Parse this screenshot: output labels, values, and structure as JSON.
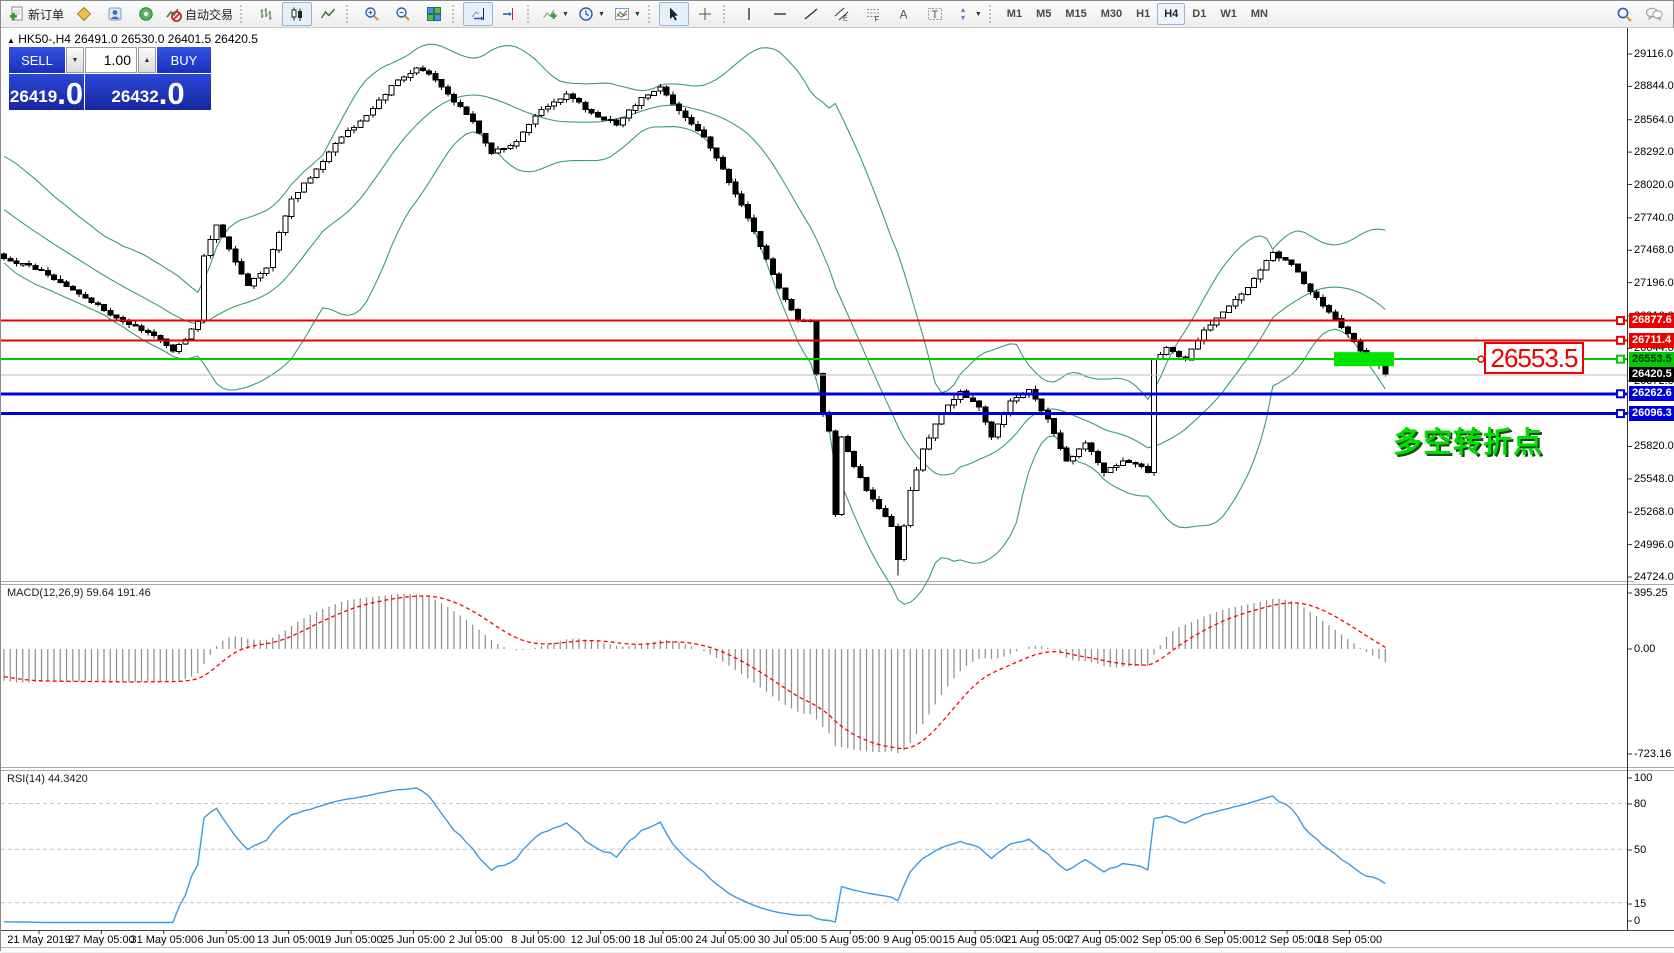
{
  "toolbar": {
    "new_order_label": "新订单",
    "autotrading_label": "自动交易",
    "timeframes": [
      "M1",
      "M5",
      "M15",
      "M30",
      "H1",
      "H4",
      "D1",
      "W1",
      "MN"
    ],
    "active_timeframe": "H4"
  },
  "quote_header": {
    "symbol": "HK50-,H4",
    "open": "26491.0",
    "high": "26530.0",
    "low": "26401.5",
    "close": "26420.5"
  },
  "order_panel": {
    "sell_label": "SELL",
    "buy_label": "BUY",
    "volume": "1.00",
    "sell_price": "26419",
    "sell_price_fraction": ".0",
    "buy_price": "26432",
    "buy_price_fraction": ".0"
  },
  "price_axis_ticks": [
    "29116.0",
    "28844.0",
    "28564.0",
    "28292.0",
    "28020.0",
    "27740.0",
    "27468.0",
    "27196.0",
    "26916.0",
    "26644.0",
    "26372.0",
    "26100.0",
    "25820.0",
    "25548.0",
    "25268.0",
    "24996.0",
    "24724.0"
  ],
  "hlines": [
    {
      "price": 26877.6,
      "label": "26877.6",
      "color": "#ee0000",
      "text_color": "#ffffff",
      "width": 2
    },
    {
      "price": 26711.4,
      "label": "26711.4",
      "color": "#ee0000",
      "text_color": "#ffffff",
      "width": 2
    },
    {
      "price": 26553.5,
      "label": "26553.5",
      "color": "#00cc00",
      "text_color": "#003308",
      "width": 2
    },
    {
      "price": 26262.6,
      "label": "26262.6",
      "color": "#0000dd",
      "text_color": "#ffffff",
      "width": 3
    },
    {
      "price": 26096.3,
      "label": "26096.3",
      "color": "#0000dd",
      "text_color": "#ffffff",
      "width": 3
    }
  ],
  "current_price": {
    "price": 26420.5,
    "label": "26420.5",
    "line_color": "#bcbcbc",
    "tag_bg": "#000000",
    "tag_text": "#ffffff"
  },
  "annotations": {
    "price_callout": "26553.5",
    "turning_point_text": "多空转折点",
    "highlight_color": "#00e400"
  },
  "macd_pane": {
    "label": "MACD(12,26,9)",
    "value_main": "59.64",
    "value_signal": "191.46",
    "axis": [
      "395.25",
      "0.00",
      "-723.16"
    ],
    "histogram_color": "#8c8c8c",
    "signal_color": "#ff0000"
  },
  "rsi_pane": {
    "label": "RSI(14)",
    "value": "44.3420",
    "axis": [
      "100",
      "80",
      "50",
      "15",
      "0"
    ],
    "levels": [
      80,
      50,
      15
    ],
    "line_color": "#3e9ade"
  },
  "date_axis": [
    "21 May 2019",
    "27 May 05:00",
    "31 May 05:00",
    "6 Jun 05:00",
    "13 Jun 05:00",
    "19 Jun 05:00",
    "25 Jun 05:00",
    "2 Jul 05:00",
    "8 Jul 05:00",
    "12 Jul 05:00",
    "18 Jul 05:00",
    "24 Jul 05:00",
    "30 Jul 05:00",
    "5 Aug 05:00",
    "9 Aug 05:00",
    "15 Aug 05:00",
    "21 Aug 05:00",
    "27 Aug 05:00",
    "2 Sep 05:00",
    "6 Sep 05:00",
    "12 Sep 05:00",
    "18 Sep 05:00"
  ],
  "chart_data": {
    "type": "candlestick",
    "symbol": "HK50-",
    "timeframe": "H4",
    "price_axis_range": [
      24724.0,
      29116.0
    ],
    "bars_visible": 222,
    "up_color": "#ffffff",
    "down_color": "#000000",
    "bollinger": {
      "period": 20,
      "deviation": 2,
      "color": "#3a9e6d"
    },
    "prehistory_trend": [
      28450,
      27480
    ],
    "close_keypoints": [
      [
        0,
        27400
      ],
      [
        6,
        27300
      ],
      [
        12,
        27100
      ],
      [
        18,
        26900
      ],
      [
        24,
        26750
      ],
      [
        27,
        26620
      ],
      [
        29,
        26720
      ],
      [
        31,
        26870
      ],
      [
        32,
        27420
      ],
      [
        34,
        27680
      ],
      [
        36,
        27480
      ],
      [
        39,
        27170
      ],
      [
        42,
        27320
      ],
      [
        46,
        27900
      ],
      [
        50,
        28150
      ],
      [
        54,
        28420
      ],
      [
        58,
        28600
      ],
      [
        62,
        28850
      ],
      [
        66,
        29000
      ],
      [
        68,
        28950
      ],
      [
        71,
        28780
      ],
      [
        75,
        28550
      ],
      [
        78,
        28280
      ],
      [
        82,
        28380
      ],
      [
        86,
        28650
      ],
      [
        90,
        28780
      ],
      [
        94,
        28620
      ],
      [
        98,
        28520
      ],
      [
        102,
        28750
      ],
      [
        105,
        28840
      ],
      [
        108,
        28640
      ],
      [
        112,
        28420
      ],
      [
        115,
        28150
      ],
      [
        118,
        27850
      ],
      [
        121,
        27500
      ],
      [
        124,
        27150
      ],
      [
        127,
        26880
      ],
      [
        129,
        26870
      ],
      [
        130,
        26430
      ],
      [
        131,
        26090
      ],
      [
        132,
        25950
      ],
      [
        133,
        25250
      ],
      [
        134,
        25900
      ],
      [
        136,
        25650
      ],
      [
        138,
        25450
      ],
      [
        140,
        25300
      ],
      [
        142,
        25150
      ],
      [
        143,
        24870
      ],
      [
        145,
        25450
      ],
      [
        147,
        25800
      ],
      [
        150,
        26100
      ],
      [
        153,
        26280
      ],
      [
        156,
        26150
      ],
      [
        158,
        25900
      ],
      [
        161,
        26200
      ],
      [
        164,
        26300
      ],
      [
        167,
        26050
      ],
      [
        170,
        25700
      ],
      [
        173,
        25850
      ],
      [
        176,
        25600
      ],
      [
        179,
        25700
      ],
      [
        182,
        25650
      ],
      [
        183,
        25600
      ],
      [
        184,
        26550
      ],
      [
        186,
        26650
      ],
      [
        189,
        26550
      ],
      [
        192,
        26800
      ],
      [
        195,
        26950
      ],
      [
        198,
        27100
      ],
      [
        201,
        27300
      ],
      [
        203,
        27450
      ],
      [
        206,
        27350
      ],
      [
        209,
        27120
      ],
      [
        212,
        26950
      ],
      [
        214,
        26820
      ],
      [
        216,
        26700
      ],
      [
        218,
        26560
      ],
      [
        220,
        26500
      ],
      [
        221,
        26420.5
      ]
    ]
  }
}
